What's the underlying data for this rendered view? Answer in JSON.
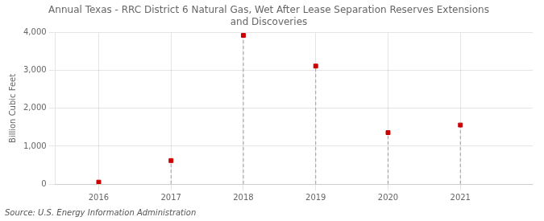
{
  "chart_data": {
    "type": "lollipop",
    "title": "Annual Texas - RRC District 6 Natural Gas, Wet After Lease Separation Reserves Extensions\nand Discoveries",
    "ylabel": "Billion Cubic Feet",
    "annotation": "Source: U.S. Energy Information Administration",
    "x": [
      2016,
      2017,
      2018,
      2019,
      2020,
      2021
    ],
    "values": [
      50,
      620,
      3930,
      3120,
      1360,
      1560
    ],
    "color": "#cc0000",
    "marker": "square",
    "line_style": "dashed",
    "xlim": [
      2015.4,
      2022.0
    ],
    "xticks": [
      2016,
      2017,
      2018,
      2019,
      2020,
      2021
    ],
    "ylim": [
      0,
      4000
    ],
    "yticks": [
      0,
      {
        "value": 1000,
        "label": "1,000"
      },
      {
        "value": 2000,
        "label": "2,000"
      },
      {
        "value": 3000,
        "label": "3,000"
      },
      {
        "value": 4000,
        "label": "4,000"
      }
    ],
    "grid": true
  }
}
